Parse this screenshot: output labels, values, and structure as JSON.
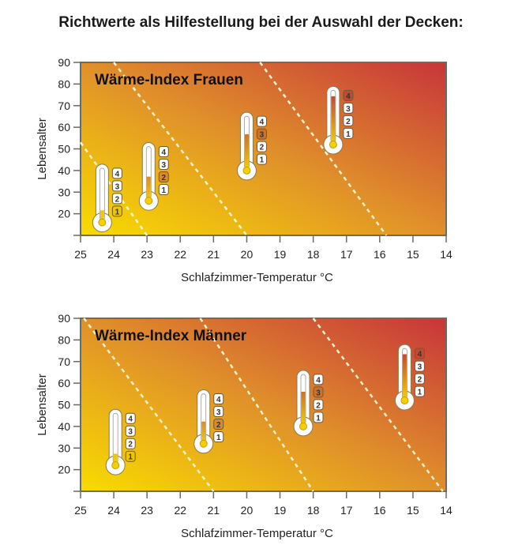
{
  "title": "Richtwerte als Hilfestellung bei der Auswahl der Decken:",
  "colors": {
    "warm_low": "#f8dc00",
    "mid": "#e0902a",
    "warm_high": "#c7353a",
    "axis": "#6e6a5e"
  },
  "chart_data": [
    {
      "type": "scatter",
      "title": "Wärme-Index Frauen",
      "xlabel": "Schlafzimmer-Temperatur °C",
      "ylabel": "Lebensalter",
      "xlim": [
        25,
        14
      ],
      "ylim": [
        10,
        90
      ],
      "xticks": [
        "25",
        "24",
        "23",
        "22",
        "21",
        "20",
        "19",
        "18",
        "17",
        "16",
        "15",
        "14"
      ],
      "yticks": [
        "20",
        "30",
        "40",
        "50",
        "60",
        "70",
        "80",
        "90"
      ],
      "levels": [
        "1",
        "2",
        "3",
        "4"
      ],
      "boundaries": [
        [
          [
            25,
            53
          ],
          [
            23,
            10
          ]
        ],
        [
          [
            24,
            90
          ],
          [
            20,
            10
          ]
        ],
        [
          [
            19.6,
            90
          ],
          [
            15.8,
            10
          ]
        ]
      ],
      "points": [
        {
          "temp": 24.35,
          "age_bulb": 16,
          "age_top": 40,
          "level": 1
        },
        {
          "temp": 22.95,
          "age_bulb": 26,
          "age_top": 50,
          "level": 2
        },
        {
          "temp": 20.0,
          "age_bulb": 40,
          "age_top": 64,
          "level": 3
        },
        {
          "temp": 17.4,
          "age_bulb": 52,
          "age_top": 76,
          "level": 4
        }
      ]
    },
    {
      "type": "scatter",
      "title": "Wärme-Index Männer",
      "xlabel": "Schlafzimmer-Temperatur °C",
      "ylabel": "Lebensalter",
      "xlim": [
        25,
        14
      ],
      "ylim": [
        10,
        90
      ],
      "xticks": [
        "25",
        "24",
        "23",
        "22",
        "21",
        "20",
        "19",
        "18",
        "17",
        "16",
        "15",
        "14"
      ],
      "yticks": [
        "20",
        "30",
        "40",
        "50",
        "60",
        "70",
        "80",
        "90"
      ],
      "levels": [
        "1",
        "2",
        "3",
        "4"
      ],
      "boundaries": [
        [
          [
            24.9,
            90
          ],
          [
            21,
            10
          ]
        ],
        [
          [
            21.4,
            90
          ],
          [
            18,
            10
          ]
        ],
        [
          [
            18,
            90
          ],
          [
            14.1,
            10
          ]
        ]
      ],
      "points": [
        {
          "temp": 23.95,
          "age_bulb": 22,
          "age_top": 45,
          "level": 1
        },
        {
          "temp": 21.3,
          "age_bulb": 32,
          "age_top": 54,
          "level": 2
        },
        {
          "temp": 18.3,
          "age_bulb": 40,
          "age_top": 63,
          "level": 3
        },
        {
          "temp": 15.25,
          "age_bulb": 52,
          "age_top": 75,
          "level": 4
        }
      ]
    }
  ]
}
